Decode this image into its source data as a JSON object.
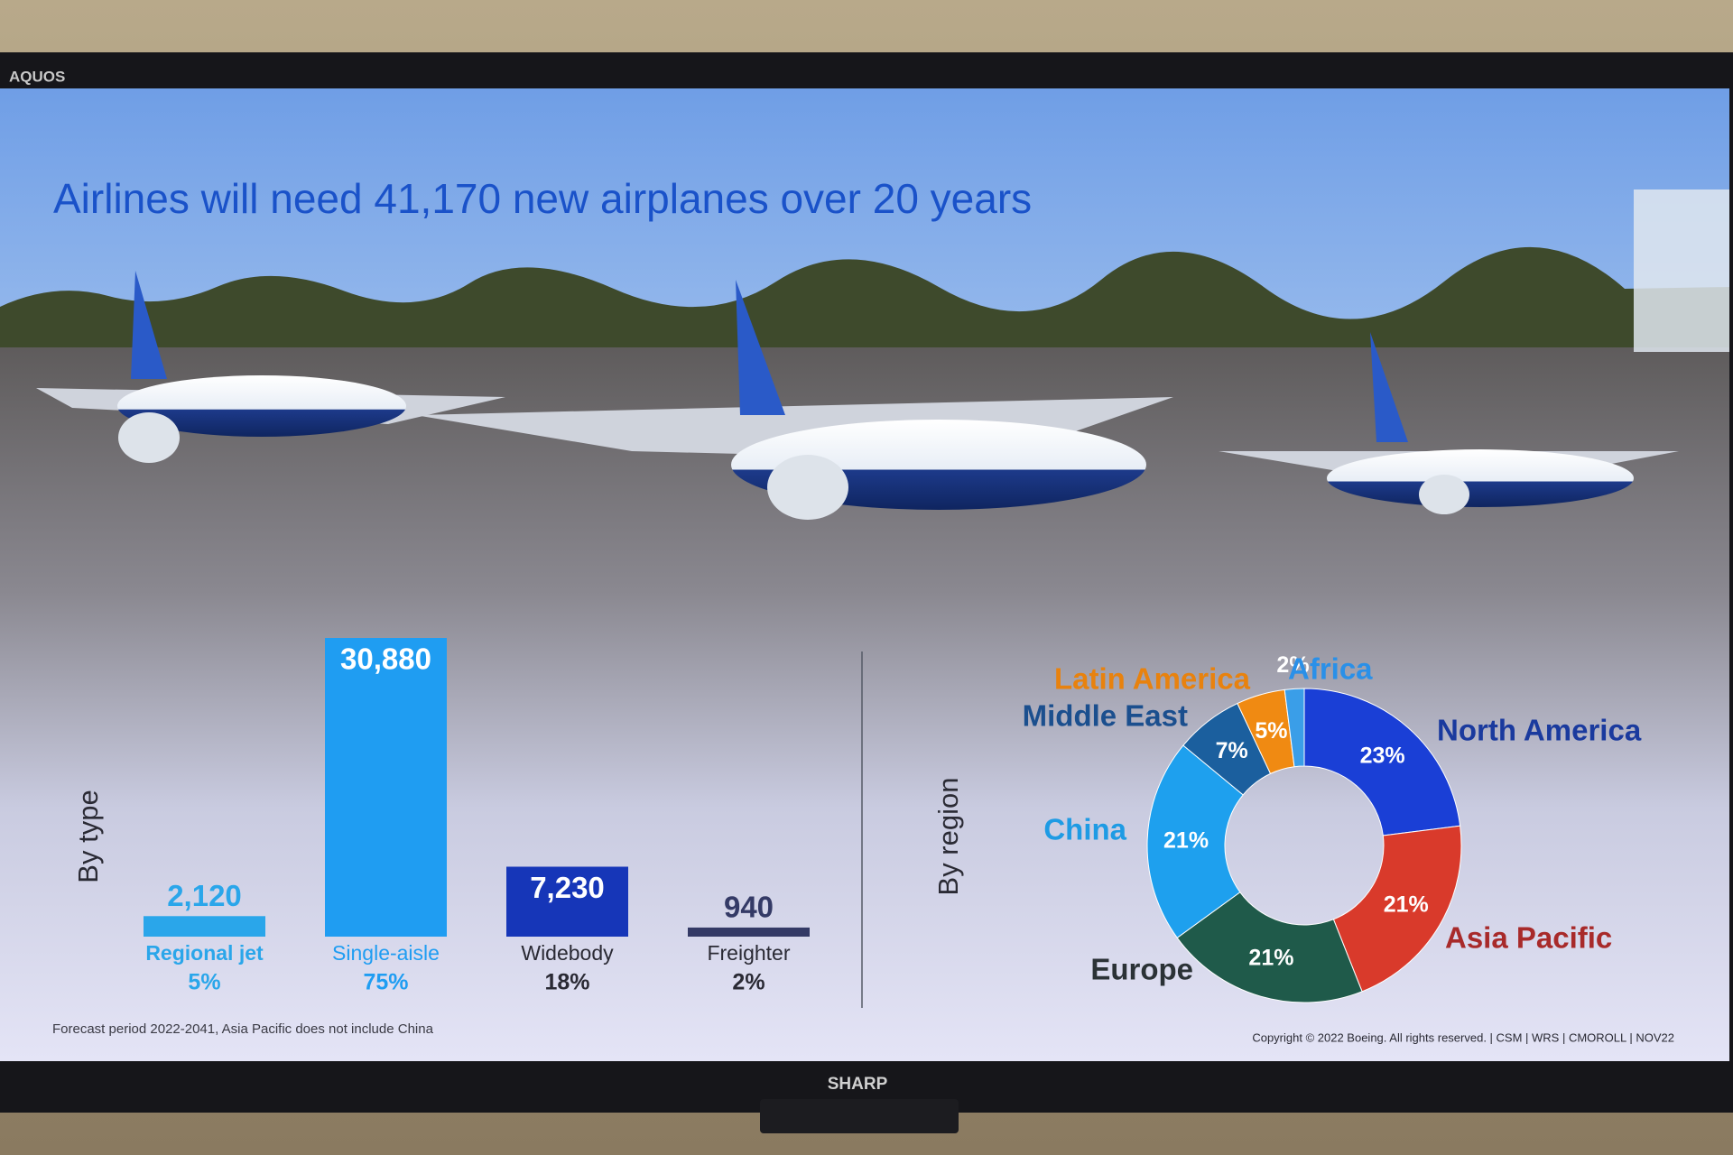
{
  "bezel": {
    "brand_top": "AQUOS",
    "brand_bottom": "SHARP"
  },
  "slide": {
    "title": "Airlines will need 41,170 new airplanes over 20 years",
    "footnote": "Forecast period 2022-2041, Asia Pacific does not include China",
    "copyright": "Copyright © 2022 Boeing. All rights reserved.  |  CSM  |  WRS  |  CMOROLL  |  NOV22"
  },
  "chart_data": [
    {
      "type": "bar",
      "axis_label": "By type",
      "categories": [
        "Regional jet",
        "Single-aisle",
        "Widebody",
        "Freighter"
      ],
      "values": [
        2120,
        30880,
        7230,
        940
      ],
      "value_labels": [
        "2,120",
        "30,880",
        "7,230",
        "940"
      ],
      "shares": [
        5,
        75,
        18,
        2
      ],
      "share_labels": [
        "5%",
        "75%",
        "18%",
        "2%"
      ],
      "colors": [
        "#2aa6ea",
        "#1f9df2",
        "#1636b8",
        "#343a66"
      ]
    },
    {
      "type": "donut",
      "axis_label": "By region",
      "categories": [
        "North America",
        "Asia Pacific",
        "Europe",
        "China",
        "Middle East",
        "Latin America",
        "Africa"
      ],
      "values": [
        23,
        21,
        21,
        21,
        7,
        5,
        2
      ],
      "value_labels": [
        "23%",
        "21%",
        "21%",
        "21%",
        "7%",
        "5%",
        "2%"
      ],
      "colors": [
        "#1a3fd6",
        "#d93a2b",
        "#1f5a4a",
        "#1ea0ee",
        "#1b5f9e",
        "#f08a12",
        "#3a9ee8"
      ],
      "label_colors": [
        "#1a3a9e",
        "#a82a2a",
        "#2b3236",
        "#1e9be4",
        "#1b4f8e",
        "#e8820e",
        "#2a90e8"
      ]
    }
  ]
}
